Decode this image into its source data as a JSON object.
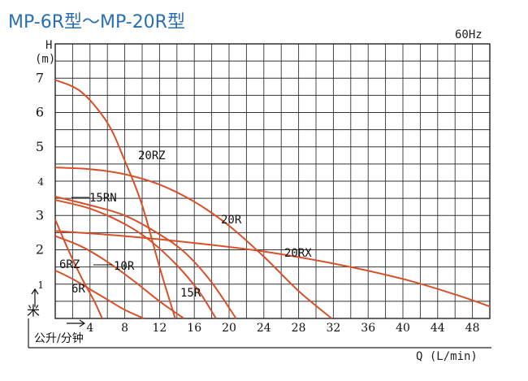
{
  "chart_data": {
    "type": "line",
    "title": "MP-6R型～MP-20R型",
    "frequency": "60Hz",
    "ylabel_top": "H",
    "ylabel_unit": "(m)",
    "ylabel_cn": "米",
    "xlabel": "Q (L/min)",
    "xlabel_cn": "公升/分钟",
    "xlim": [
      0,
      50
    ],
    "ylim": [
      0,
      8
    ],
    "x_ticks": [
      4,
      8,
      12,
      16,
      20,
      24,
      28,
      32,
      36,
      40,
      44,
      48
    ],
    "y_ticks": [
      1,
      2,
      3,
      4,
      5,
      6,
      7
    ],
    "grid": true,
    "series": [
      {
        "name": "6RZ",
        "x": [
          0,
          1.5,
          3,
          4.5,
          5.4
        ],
        "y": [
          2.88,
          2.0,
          1.2,
          0.5,
          0
        ]
      },
      {
        "name": "6R",
        "x": [
          0,
          2,
          4,
          6,
          8,
          10.2
        ],
        "y": [
          1.4,
          1.15,
          0.85,
          0.55,
          0.25,
          0
        ]
      },
      {
        "name": "10R",
        "x": [
          0,
          3,
          6,
          9,
          12,
          14.8
        ],
        "y": [
          2.4,
          2.1,
          1.65,
          1.1,
          0.5,
          0
        ]
      },
      {
        "name": "15RN",
        "x": [
          0,
          4,
          8,
          11,
          14,
          16.5,
          18.5
        ],
        "y": [
          3.45,
          3.2,
          2.75,
          2.25,
          1.55,
          0.8,
          0
        ]
      },
      {
        "name": "15R",
        "x": [
          0,
          4,
          8,
          12,
          15,
          18,
          20.8
        ],
        "y": [
          3.55,
          3.3,
          3.0,
          2.45,
          1.9,
          1.05,
          0
        ]
      },
      {
        "name": "20RZ",
        "x": [
          0,
          3,
          6,
          8,
          10,
          12,
          13.8
        ],
        "y": [
          6.95,
          6.6,
          5.7,
          4.6,
          3.3,
          1.5,
          0
        ]
      },
      {
        "name": "20R",
        "x": [
          0,
          4,
          8,
          12,
          16,
          20,
          24,
          28,
          31.8
        ],
        "y": [
          4.4,
          4.35,
          4.2,
          3.9,
          3.4,
          2.7,
          1.8,
          0.8,
          0
        ]
      },
      {
        "name": "20RX",
        "x": [
          0,
          8,
          16,
          24,
          32,
          40,
          46,
          50
        ],
        "y": [
          2.55,
          2.4,
          2.2,
          1.95,
          1.6,
          1.15,
          0.7,
          0.35
        ]
      }
    ],
    "series_labels": [
      "20RZ",
      "20R",
      "20RX",
      "15RN",
      "15R",
      "10R",
      "6RZ",
      "6R"
    ]
  }
}
